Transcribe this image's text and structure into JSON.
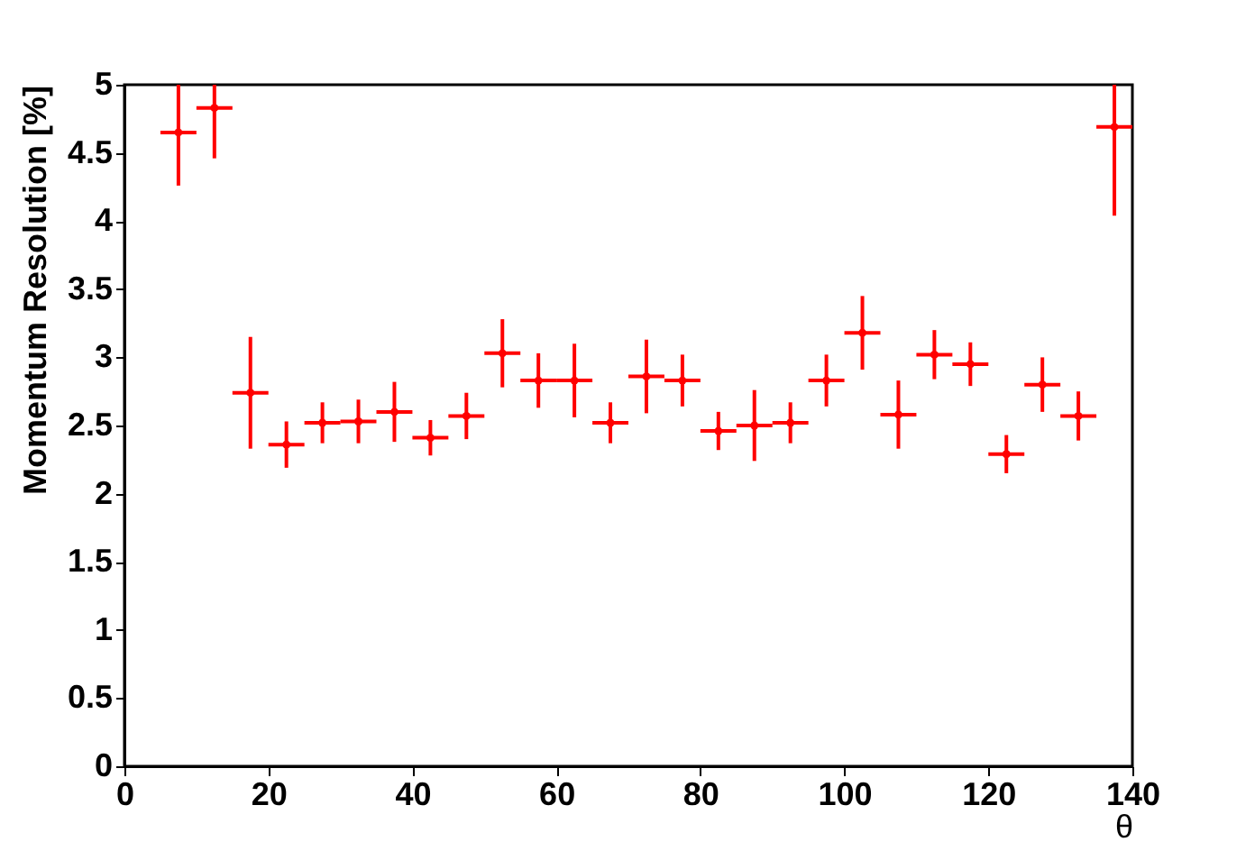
{
  "chart_data": {
    "type": "scatter",
    "xlabel": "θ",
    "ylabel": "Momentum Resolution [%]",
    "x": [
      7.5,
      12.5,
      17.5,
      22.5,
      27.5,
      32.5,
      37.5,
      42.5,
      47.5,
      52.5,
      57.5,
      62.5,
      67.5,
      72.5,
      77.5,
      82.5,
      87.5,
      92.5,
      97.5,
      102.5,
      107.5,
      112.5,
      117.5,
      122.5,
      127.5,
      132.5,
      137.5
    ],
    "series": [
      {
        "color": "#ff0000",
        "values": [
          4.65,
          4.83,
          2.74,
          2.36,
          2.52,
          2.53,
          2.6,
          2.41,
          2.57,
          3.03,
          2.83,
          2.83,
          2.52,
          2.86,
          2.83,
          2.46,
          2.5,
          2.52,
          2.83,
          3.18,
          2.58,
          3.02,
          2.95,
          2.29,
          2.8,
          2.57,
          4.69
        ],
        "errors": [
          [
            4.26,
            5
          ],
          [
            4.46,
            5
          ],
          0.41,
          0.17,
          0.15,
          0.16,
          0.22,
          0.13,
          0.17,
          0.25,
          0.2,
          0.27,
          0.15,
          0.27,
          0.19,
          0.14,
          0.26,
          0.15,
          0.19,
          0.27,
          0.25,
          0.18,
          0.16,
          0.14,
          0.2,
          0.18,
          [
            4.04,
            5
          ]
        ],
        "xerrors": [
          2.5,
          2.5,
          2.5,
          2.5,
          2.5,
          2.5,
          2.5,
          2.5,
          2.5,
          2.5,
          2.5,
          2.5,
          2.5,
          2.5,
          2.5,
          2.5,
          2.5,
          2.5,
          2.5,
          2.5,
          2.5,
          2.5,
          2.5,
          2.5,
          2.5,
          2.5,
          2.5
        ]
      }
    ],
    "xlim": [
      0,
      140
    ],
    "xticks": [
      0,
      20,
      40,
      60,
      80,
      100,
      120,
      140
    ],
    "ylim": [
      0,
      5
    ],
    "yticks": [
      0,
      0.5,
      1,
      1.5,
      2,
      2.5,
      3,
      3.5,
      4,
      4.5,
      5
    ],
    "grid": false
  }
}
